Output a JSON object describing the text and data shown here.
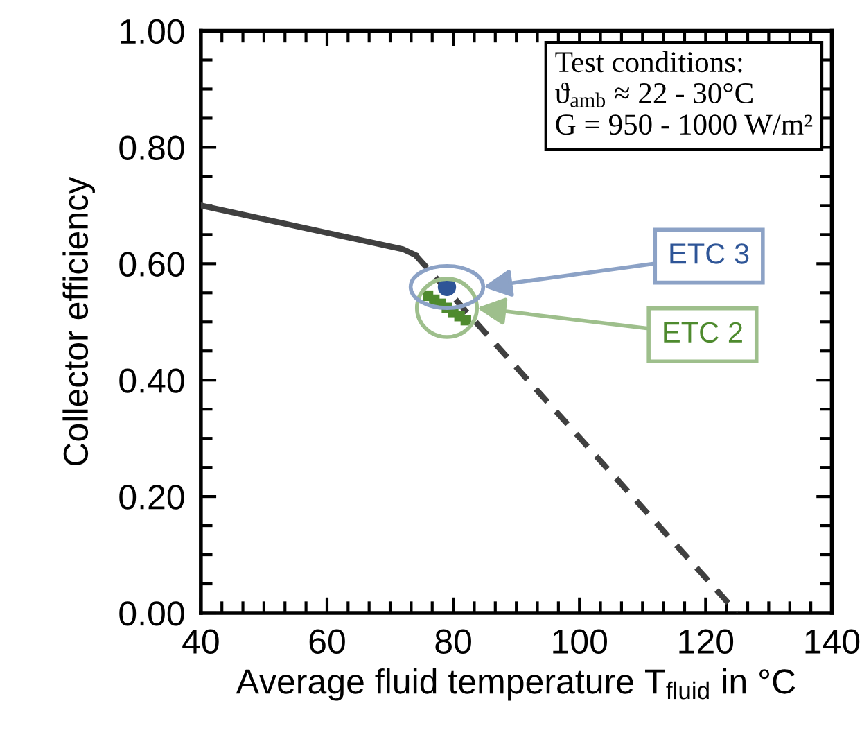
{
  "chart_data": {
    "type": "line",
    "xlabel": "Average fluid temperature T$_{fluid}$ in °C",
    "ylabel": "Collector efficiency",
    "xlim": [
      40,
      140
    ],
    "xticks": [
      40,
      60,
      80,
      100,
      120,
      140
    ],
    "ylim": [
      0,
      1
    ],
    "yticks": [
      {
        "value": 0,
        "label": "0.00"
      },
      {
        "value": 0.2,
        "label": "0.20"
      },
      {
        "value": 0.4,
        "label": "0.40"
      },
      {
        "value": 0.6,
        "label": "0.60"
      },
      {
        "value": 0.8,
        "label": "0.80"
      },
      {
        "value": 1,
        "label": "1.00"
      }
    ],
    "grid": false,
    "legend": false,
    "series": [
      {
        "color": "#404040",
        "line_style": "solid",
        "x": [
          40,
          72,
          74
        ],
        "values": [
          0.7,
          0.625,
          0.615
        ]
      },
      {
        "color": "#404040",
        "line_style": "dashed",
        "x": [
          74,
          125
        ],
        "values": [
          0.615,
          0.0
        ]
      },
      {
        "type": "scatter",
        "name": "ETC 2",
        "color": "#4e8a2e",
        "marker": "square",
        "x": [
          76,
          77,
          78,
          79,
          80,
          81,
          82
        ],
        "values": [
          0.545,
          0.538,
          0.531,
          0.524,
          0.517,
          0.51,
          0.503
        ]
      },
      {
        "type": "scatter",
        "name": "ETC 3",
        "color": "#2e5597",
        "marker": "circle",
        "x": [
          79
        ],
        "values": [
          0.56
        ]
      }
    ],
    "annotations": [
      "Test conditions:\nϑ$_{amb}$ ≈ 22 - 30°C\nG = 950 - 1000 W/m²"
    ]
  }
}
